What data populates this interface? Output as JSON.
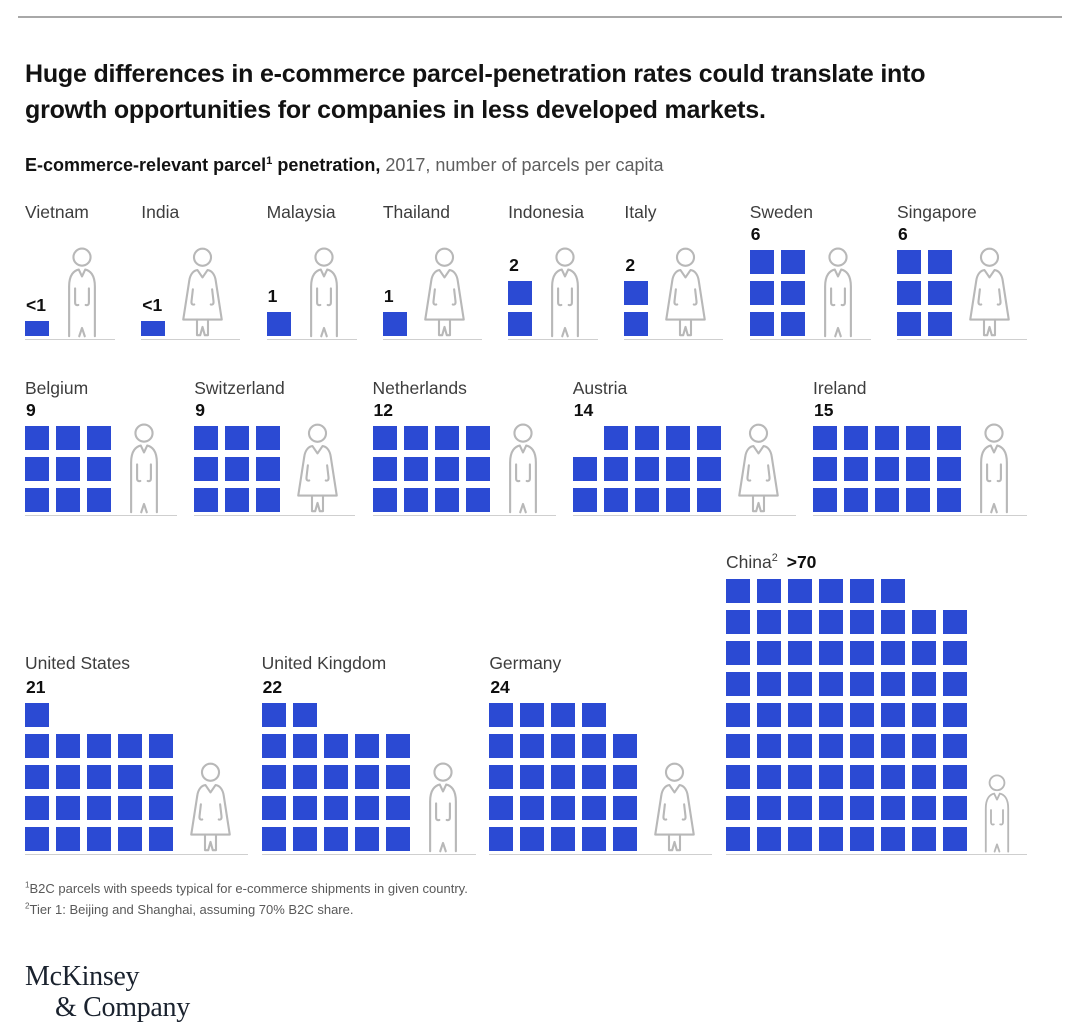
{
  "header": {
    "title_line1": "Huge differences in e-commerce parcel-penetration rates could translate into",
    "title_line2": "growth opportunities for companies in less developed markets.",
    "subtitle_bold": "E-commerce-relevant parcel",
    "subtitle_sup": "1",
    "subtitle_bold2": " penetration,",
    "subtitle_regular": " 2017, number of parcels per capita"
  },
  "chart_data": {
    "type": "pictogram-waffle",
    "title": "E-commerce-relevant parcel penetration",
    "year": "2017",
    "unit": "number of parcels per capita",
    "square_color": "#2b4ad3",
    "legend_position": "none",
    "countries": [
      {
        "slug": "vietnam",
        "name": "Vietnam",
        "value_label": "<1",
        "squares": 1,
        "row": 1,
        "figure": "male",
        "grid": {
          "cols": 1,
          "rows": [
            1
          ],
          "short": true
        }
      },
      {
        "slug": "india",
        "name": "India",
        "value_label": "<1",
        "squares": 1,
        "row": 1,
        "figure": "female",
        "grid": {
          "cols": 1,
          "rows": [
            1
          ],
          "short": true
        }
      },
      {
        "slug": "malaysia",
        "name": "Malaysia",
        "value_label": "1",
        "squares": 1,
        "row": 1,
        "figure": "male",
        "grid": {
          "cols": 1,
          "rows": [
            1
          ]
        }
      },
      {
        "slug": "thailand",
        "name": "Thailand",
        "value_label": "1",
        "squares": 1,
        "row": 1,
        "figure": "female",
        "grid": {
          "cols": 1,
          "rows": [
            1
          ]
        }
      },
      {
        "slug": "indonesia",
        "name": "Indonesia",
        "value_label": "2",
        "squares": 2,
        "row": 1,
        "figure": "male",
        "grid": {
          "cols": 1,
          "rows": [
            1,
            1
          ]
        }
      },
      {
        "slug": "italy",
        "name": "Italy",
        "value_label": "2",
        "squares": 2,
        "row": 1,
        "figure": "female",
        "grid": {
          "cols": 1,
          "rows": [
            1,
            1
          ]
        }
      },
      {
        "slug": "sweden",
        "name": "Sweden",
        "value_label": "6",
        "squares": 6,
        "row": 1,
        "figure": "male",
        "grid": {
          "cols": 2,
          "rows": [
            2,
            2,
            2
          ]
        }
      },
      {
        "slug": "singapore",
        "name": "Singapore",
        "value_label": "6",
        "squares": 6,
        "row": 1,
        "figure": "female",
        "grid": {
          "cols": 2,
          "rows": [
            2,
            2,
            2
          ]
        }
      },
      {
        "slug": "belgium",
        "name": "Belgium",
        "value_label": "9",
        "squares": 9,
        "row": 2,
        "figure": "male",
        "grid": {
          "cols": 3,
          "rows": [
            3,
            3,
            3
          ]
        }
      },
      {
        "slug": "switzerland",
        "name": "Switzerland",
        "value_label": "9",
        "squares": 9,
        "row": 2,
        "figure": "female",
        "grid": {
          "cols": 3,
          "rows": [
            3,
            3,
            3
          ]
        }
      },
      {
        "slug": "netherlands",
        "name": "Netherlands",
        "value_label": "12",
        "squares": 12,
        "row": 2,
        "figure": "male",
        "grid": {
          "cols": 4,
          "rows": [
            4,
            4,
            4
          ]
        }
      },
      {
        "slug": "austria",
        "name": "Austria",
        "value_label": "14",
        "squares": 14,
        "row": 2,
        "figure": "female",
        "grid": {
          "cols": 5,
          "rows": [
            4,
            5,
            5
          ],
          "top_align": "right"
        }
      },
      {
        "slug": "ireland",
        "name": "Ireland",
        "value_label": "15",
        "squares": 15,
        "row": 2,
        "figure": "male",
        "grid": {
          "cols": 5,
          "rows": [
            5,
            5,
            5
          ]
        }
      },
      {
        "slug": "united-states",
        "name": "United States",
        "value_label": "21",
        "squares": 21,
        "row": 3,
        "figure": "female",
        "grid": {
          "cols": 5,
          "rows": [
            1,
            5,
            5,
            5,
            5
          ]
        }
      },
      {
        "slug": "united-kingdom",
        "name": "United Kingdom",
        "value_label": "22",
        "squares": 22,
        "row": 3,
        "figure": "male",
        "grid": {
          "cols": 5,
          "rows": [
            2,
            5,
            5,
            5,
            5
          ]
        }
      },
      {
        "slug": "germany",
        "name": "Germany",
        "value_label": "24",
        "squares": 24,
        "row": 3,
        "figure": "female",
        "grid": {
          "cols": 5,
          "rows": [
            4,
            5,
            5,
            5,
            5
          ]
        }
      },
      {
        "slug": "china",
        "name": "China",
        "sup": "2",
        "value_label": ">70",
        "squares": 70,
        "row": 3,
        "figure": "male",
        "value_inline": true,
        "tall": true,
        "small_person": true,
        "grid": {
          "cols": 8,
          "rows": [
            6,
            8,
            8,
            8,
            8,
            8,
            8,
            8,
            8
          ]
        }
      }
    ]
  },
  "footnotes": [
    {
      "sup": "1",
      "text": "B2C parcels with speeds typical for e-commerce shipments in given country."
    },
    {
      "sup": "2",
      "text": "Tier 1: Beijing and Shanghai, assuming 70% B2C share."
    }
  ],
  "logo": {
    "line1": "McKinsey",
    "line2": "& Company"
  }
}
